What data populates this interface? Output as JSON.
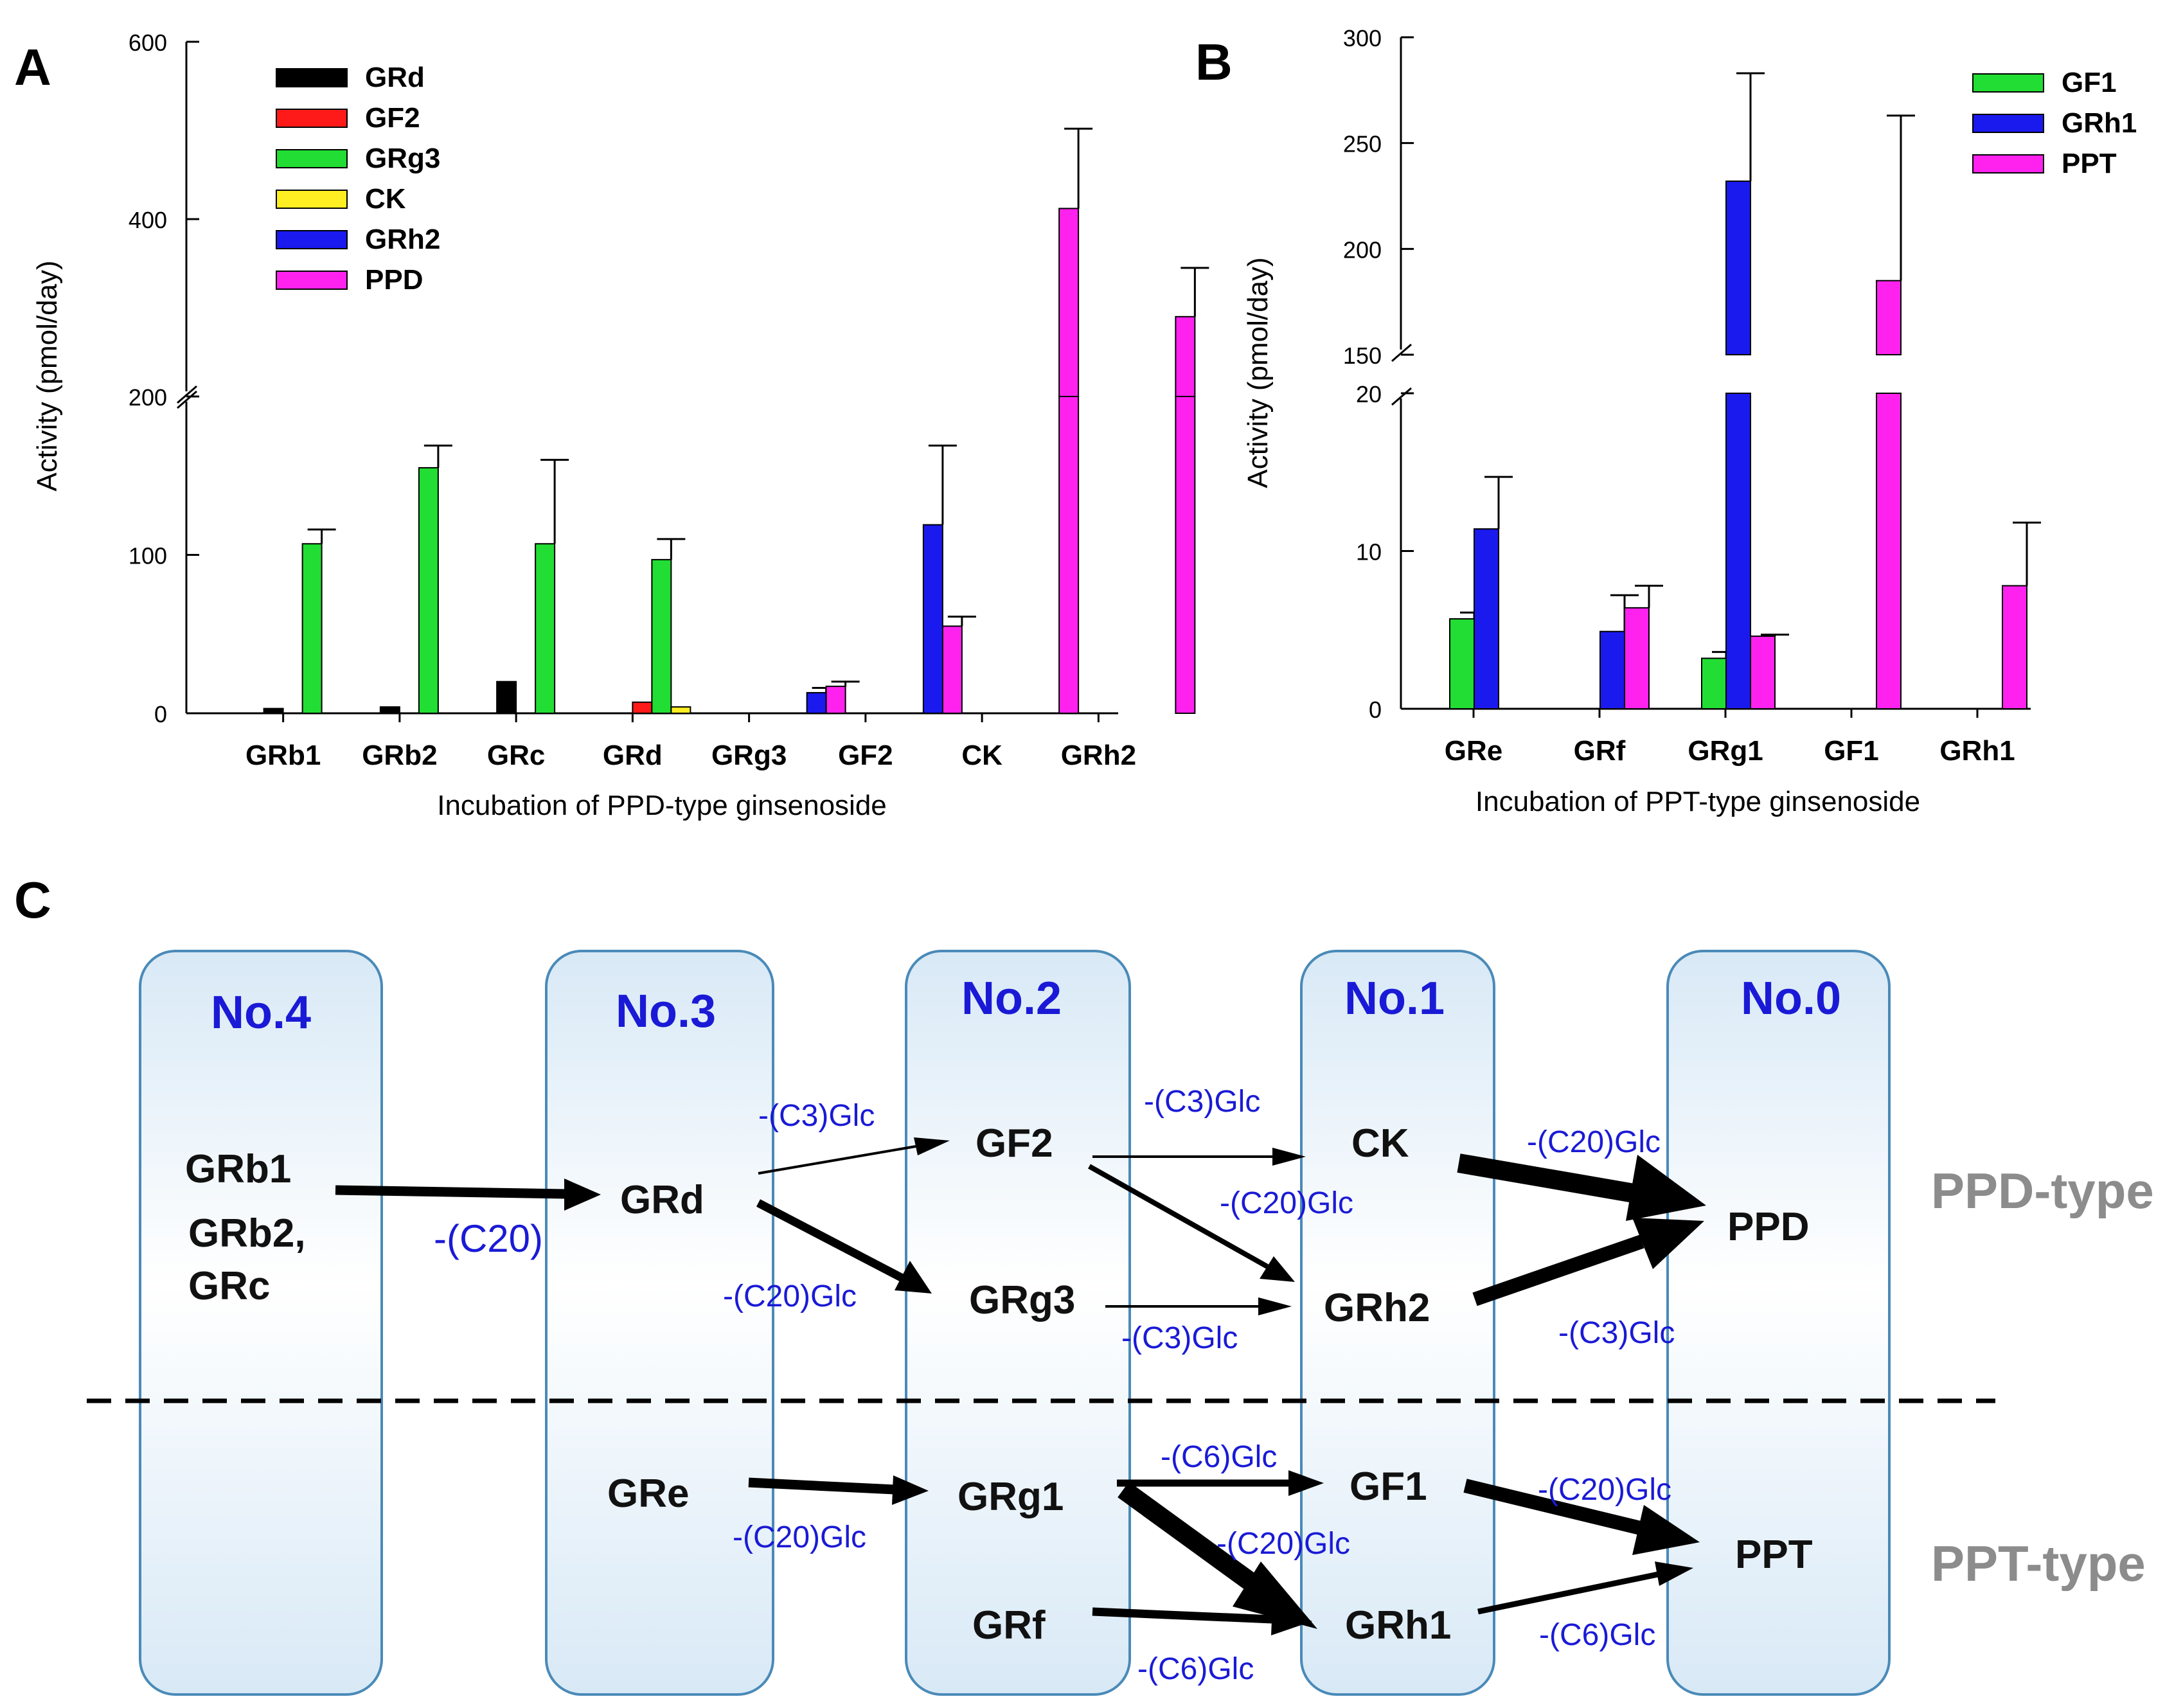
{
  "panel_labels": {
    "a": "A",
    "b": "B",
    "c": "C"
  },
  "colors": {
    "GRd": "#000000",
    "GF2": "#ff1a1a",
    "GRg3": "#22dd33",
    "CK": "#ffee22",
    "GRh2": "#1a1aee",
    "PPD": "#ff22ee",
    "GF1": "#22dd33",
    "GRh1": "#1a1aee",
    "PPT": "#ff22ee",
    "pathway_label": "#1a1ad6",
    "column_fill": "#e3f0fa",
    "column_border": "#4a8ab8",
    "type_label": "#8c8c8c"
  },
  "chart_data": [
    {
      "type": "bar",
      "panel": "A",
      "title": "",
      "xlabel": "Incubation of PPD-type ginsenoside",
      "ylabel": "Activity (pmol/day)",
      "categories": [
        "GRb1",
        "GRb2",
        "GRc",
        "GRd",
        "GRg3",
        "GF2",
        "CK",
        "GRh2"
      ],
      "axis_break": {
        "lower": [
          0,
          200
        ],
        "upper": [
          200,
          600
        ]
      },
      "yticks": [
        {
          "value": 0,
          "label": "0"
        },
        {
          "value": 100,
          "label": "100"
        },
        {
          "value": 200,
          "label": "200"
        },
        {
          "value": 400,
          "label": "400"
        },
        {
          "value": 600,
          "label": "600"
        }
      ],
      "legend": [
        "GRd",
        "GF2",
        "GRg3",
        "CK",
        "GRh2",
        "PPD"
      ],
      "legend_position": "top-left",
      "series": [
        {
          "name": "GRd",
          "values": [
            3,
            4,
            20,
            null,
            null,
            null,
            null,
            null
          ],
          "errors": [
            0,
            0,
            0,
            0,
            0,
            0,
            0,
            0
          ]
        },
        {
          "name": "GF2",
          "values": [
            null,
            null,
            null,
            7,
            null,
            null,
            null,
            null
          ],
          "errors": [
            0,
            0,
            0,
            0,
            0,
            0,
            0,
            0
          ]
        },
        {
          "name": "GRg3",
          "values": [
            107,
            155,
            107,
            97,
            null,
            null,
            null,
            null
          ],
          "errors": [
            9,
            14,
            53,
            13,
            0,
            0,
            0,
            0
          ]
        },
        {
          "name": "CK",
          "values": [
            null,
            null,
            null,
            4,
            null,
            null,
            null,
            null
          ],
          "errors": [
            0,
            0,
            0,
            0,
            0,
            0,
            0,
            0
          ]
        },
        {
          "name": "GRh2",
          "values": [
            null,
            null,
            null,
            null,
            13,
            119,
            null,
            null
          ],
          "errors": [
            0,
            0,
            0,
            0,
            3,
            50,
            0,
            0
          ]
        },
        {
          "name": "PPD",
          "values": [
            null,
            null,
            null,
            null,
            17,
            55,
            412,
            290
          ],
          "errors": [
            0,
            0,
            0,
            0,
            3,
            6,
            90,
            55
          ]
        }
      ]
    },
    {
      "type": "bar",
      "panel": "B",
      "title": "",
      "xlabel": "Incubation of PPT-type ginsenoside",
      "ylabel": "Activity (pmol/day)",
      "categories": [
        "GRe",
        "GRf",
        "GRg1",
        "GF1",
        "GRh1"
      ],
      "axis_break": {
        "lower": [
          0,
          20
        ],
        "upper": [
          150,
          300
        ]
      },
      "yticks": [
        {
          "value": 0,
          "label": "0"
        },
        {
          "value": 10,
          "label": "10"
        },
        {
          "value": 20,
          "label": "20"
        },
        {
          "value": 150,
          "label": "150"
        },
        {
          "value": 200,
          "label": "200"
        },
        {
          "value": 250,
          "label": "250"
        },
        {
          "value": 300,
          "label": "300"
        }
      ],
      "legend": [
        "GF1",
        "GRh1",
        "PPT"
      ],
      "legend_position": "top-right",
      "series": [
        {
          "name": "GF1",
          "values": [
            5.7,
            null,
            3.2,
            null,
            null
          ],
          "errors": [
            0.4,
            0,
            0.4,
            0,
            0
          ]
        },
        {
          "name": "GRh1",
          "values": [
            11.4,
            4.9,
            232,
            null,
            null
          ],
          "errors": [
            3.3,
            2.3,
            51,
            0,
            0
          ]
        },
        {
          "name": "PPT",
          "values": [
            null,
            6.4,
            4.6,
            185,
            7.8
          ],
          "errors": [
            0,
            1.4,
            0.1,
            78,
            4.0
          ]
        }
      ]
    }
  ],
  "pathway": {
    "columns": [
      "No.4",
      "No.3",
      "No.2",
      "No.1",
      "No.0"
    ],
    "type_labels": [
      "PPD-type",
      "PPT-type"
    ],
    "compounds": {
      "GRb1": "GRb1",
      "GRb2": "GRb2,",
      "GRc": "GRc",
      "GRd": "GRd",
      "GF2": "GF2",
      "GRg3": "GRg3",
      "CK": "CK",
      "GRh2": "GRh2",
      "PPD": "PPD",
      "GRe": "GRe",
      "GRg1": "GRg1",
      "GRf": "GRf",
      "GF1": "GF1",
      "GRh1": "GRh1",
      "PPT": "PPT"
    },
    "reactions": [
      {
        "from": "GRb1",
        "to": "GRd",
        "label": "-(C20)"
      },
      {
        "from": "GRd",
        "to": "GF2",
        "label": "-(C3)Glc"
      },
      {
        "from": "GRd",
        "to": "GRg3",
        "label": "-(C20)Glc"
      },
      {
        "from": "GF2",
        "to": "CK",
        "label": "-(C3)Glc"
      },
      {
        "from": "GF2",
        "to": "GRh2",
        "label": "-(C20)Glc"
      },
      {
        "from": "GRg3",
        "to": "GRh2",
        "label": "-(C3)Glc"
      },
      {
        "from": "CK",
        "to": "PPD",
        "label": "-(C20)Glc"
      },
      {
        "from": "GRh2",
        "to": "PPD",
        "label": "-(C3)Glc"
      },
      {
        "from": "GRe",
        "to": "GRg1",
        "label": "-(C20)Glc"
      },
      {
        "from": "GRg1",
        "to": "GF1",
        "label": "-(C6)Glc"
      },
      {
        "from": "GRg1",
        "to": "GRh1",
        "label": "-(C20)Glc"
      },
      {
        "from": "GRf",
        "to": "GRh1",
        "label": "-(C6)Glc"
      },
      {
        "from": "GF1",
        "to": "PPT",
        "label": "-(C20)Glc"
      },
      {
        "from": "GRh1",
        "to": "PPT",
        "label": "-(C6)Glc"
      }
    ]
  }
}
